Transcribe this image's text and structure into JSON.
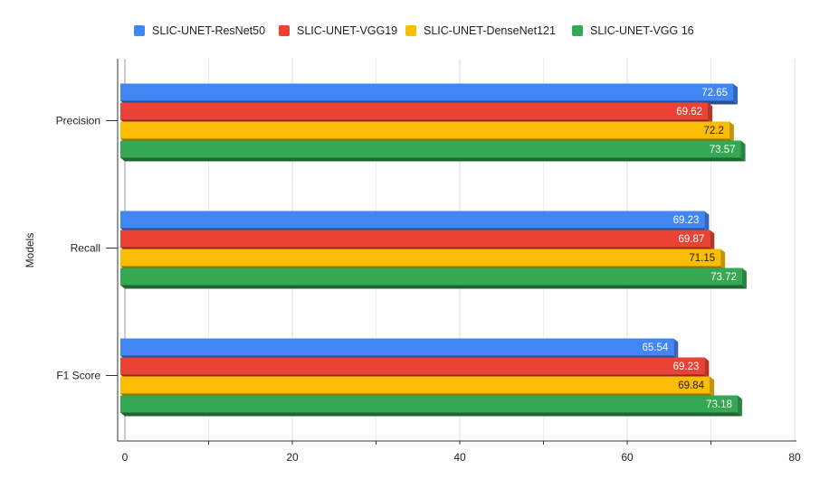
{
  "chart_data": {
    "type": "bar",
    "orientation": "horizontal",
    "categories": [
      "Precision",
      "Recall",
      "F1 Score"
    ],
    "series": [
      {
        "name": "SLIC-UNET-ResNet50",
        "color": "#4285f4",
        "label_color": "#ffffff",
        "values": [
          72.65,
          69.23,
          65.54
        ]
      },
      {
        "name": "SLIC-UNET-VGG19",
        "color": "#ea4335",
        "label_color": "#ffffff",
        "values": [
          69.62,
          69.87,
          69.23
        ]
      },
      {
        "name": "SLIC-UNET-DenseNet121",
        "color": "#fbbc04",
        "label_color": "#222222",
        "values": [
          72.2,
          71.15,
          69.84
        ]
      },
      {
        "name": "SLIC-UNET-VGG 16",
        "color": "#34a853",
        "label_color": "#ffffff",
        "values": [
          73.57,
          73.72,
          73.18
        ]
      }
    ],
    "xlim": [
      0,
      80
    ],
    "xticks": [
      0,
      20,
      40,
      60,
      80
    ],
    "ylabel": "Models",
    "xlabel": "",
    "grid": true,
    "legend": "top",
    "style": "3d"
  }
}
